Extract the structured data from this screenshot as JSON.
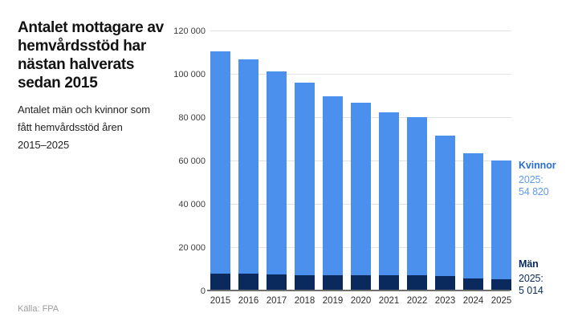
{
  "header": {
    "title": "Antalet mottagare av hemvårdsstöd har nästan halverats sedan 2015",
    "title_lines": [
      "Antalet mottagare av",
      "hemvårdsstöd har",
      "nästan halverats",
      "sedan 2015"
    ],
    "subtitle": "Antalet män och kvinnor som fått hemvårdsstöd åren 2015–2025",
    "subtitle_lines": [
      "Antalet män och kvinnor som",
      "fått hemvårdsstöd åren",
      "2015–2025"
    ]
  },
  "footer": {
    "source": "Källa: FPA"
  },
  "annotations": {
    "kvinnor": {
      "label": "Kvinnor",
      "year": "2025:",
      "value": "54 820"
    },
    "man": {
      "label": "Män",
      "year": "2025:",
      "value": "5 014"
    }
  },
  "colors": {
    "kvinnor_bar": "#4b90ec",
    "man_bar": "#0a2a5e",
    "kvinnor_label": "#2b6fd2",
    "kvinnor_value": "#5f9bef",
    "man_label": "#0a2a5e",
    "gridline": "#e2e2e2",
    "axis_line": "#6f6f6f"
  },
  "chart_data": {
    "type": "bar",
    "stacked": true,
    "title": "Antalet mottagare av hemvårdsstöd har nästan halverats sedan 2015",
    "subtitle": "Antalet män och kvinnor som fått hemvårdsstöd åren 2015–2025",
    "categories": [
      "2015",
      "2016",
      "2017",
      "2018",
      "2019",
      "2020",
      "2021",
      "2022",
      "2023",
      "2024",
      "2025"
    ],
    "series": [
      {
        "name": "Män",
        "color_key": "man_bar",
        "values": [
          7700,
          7700,
          7400,
          7000,
          6900,
          7100,
          7000,
          6900,
          6500,
          5500,
          5014
        ]
      },
      {
        "name": "Kvinnor",
        "color_key": "kvinnor_bar",
        "values": [
          102600,
          98800,
          93900,
          88900,
          82700,
          79600,
          75400,
          73000,
          65000,
          57700,
          54820
        ]
      }
    ],
    "labeled_values": {
      "Kvinnor_2025": "54 820",
      "Män_2025": "5 014"
    },
    "xlabel": "",
    "ylabel": "",
    "ylim": [
      0,
      120000
    ],
    "yticks": [
      {
        "value": 0,
        "label": "0"
      },
      {
        "value": 20000,
        "label": "20 000"
      },
      {
        "value": 40000,
        "label": "40 000"
      },
      {
        "value": 60000,
        "label": "60 000"
      },
      {
        "value": 80000,
        "label": "80 000"
      },
      {
        "value": 100000,
        "label": "100 000"
      },
      {
        "value": 120000,
        "label": "120 000"
      }
    ],
    "grid": true,
    "legend_position": "right",
    "source": "Källa: FPA"
  }
}
